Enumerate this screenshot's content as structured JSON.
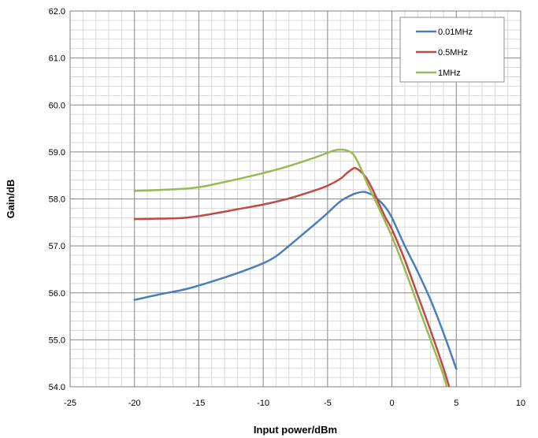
{
  "chart_data": {
    "type": "line",
    "title": "",
    "xlabel": "Input power/dBm",
    "ylabel": "Gain/dB",
    "xlim": [
      -25,
      10
    ],
    "ylim": [
      54.0,
      62.0
    ],
    "x_ticks": [
      -25,
      -20,
      -15,
      -10,
      -5,
      0,
      5,
      10
    ],
    "y_ticks": [
      "54.0",
      "55.0",
      "56.0",
      "57.0",
      "58.0",
      "59.0",
      "60.0",
      "61.0",
      "62.0"
    ],
    "grid": true,
    "minor_grid": true,
    "legend_position": "top-right",
    "series": [
      {
        "name": "0.01MHz",
        "color": "#4a7ebb",
        "points": [
          [
            -20,
            55.85
          ],
          [
            -18,
            55.97
          ],
          [
            -16,
            56.08
          ],
          [
            -14,
            56.24
          ],
          [
            -12,
            56.42
          ],
          [
            -10,
            56.63
          ],
          [
            -9,
            56.78
          ],
          [
            -8,
            57.0
          ],
          [
            -7,
            57.23
          ],
          [
            -6,
            57.46
          ],
          [
            -5,
            57.7
          ],
          [
            -4,
            57.95
          ],
          [
            -3,
            58.1
          ],
          [
            -2.3,
            58.15
          ],
          [
            -2,
            58.14
          ],
          [
            -1.5,
            58.08
          ],
          [
            -1,
            57.97
          ],
          [
            -0.5,
            57.82
          ],
          [
            0,
            57.6
          ],
          [
            1,
            57.0
          ],
          [
            2,
            56.45
          ],
          [
            3,
            55.85
          ],
          [
            4,
            55.15
          ],
          [
            5,
            54.38
          ]
        ]
      },
      {
        "name": "0.5MHz",
        "color": "#be4b48",
        "points": [
          [
            -20,
            57.57
          ],
          [
            -18,
            57.58
          ],
          [
            -16,
            57.6
          ],
          [
            -14,
            57.68
          ],
          [
            -12,
            57.78
          ],
          [
            -10,
            57.88
          ],
          [
            -8,
            58.01
          ],
          [
            -6,
            58.18
          ],
          [
            -5,
            58.28
          ],
          [
            -4,
            58.43
          ],
          [
            -3.5,
            58.55
          ],
          [
            -3,
            58.65
          ],
          [
            -2.8,
            58.65
          ],
          [
            -2.5,
            58.6
          ],
          [
            -2,
            58.45
          ],
          [
            -1.5,
            58.2
          ],
          [
            -1,
            57.9
          ],
          [
            -0.5,
            57.6
          ],
          [
            0,
            57.35
          ],
          [
            1,
            56.7
          ],
          [
            2,
            55.95
          ],
          [
            3,
            55.2
          ],
          [
            4,
            54.4
          ],
          [
            4.5,
            53.95
          ]
        ]
      },
      {
        "name": "1MHz",
        "color": "#98b954",
        "points": [
          [
            -20,
            58.17
          ],
          [
            -18,
            58.19
          ],
          [
            -16,
            58.22
          ],
          [
            -15,
            58.25
          ],
          [
            -14,
            58.3
          ],
          [
            -12,
            58.42
          ],
          [
            -10,
            58.55
          ],
          [
            -8,
            58.7
          ],
          [
            -6,
            58.88
          ],
          [
            -5,
            58.98
          ],
          [
            -4.5,
            59.03
          ],
          [
            -4,
            59.05
          ],
          [
            -3.5,
            59.03
          ],
          [
            -3,
            58.95
          ],
          [
            -2.5,
            58.7
          ],
          [
            -2,
            58.38
          ],
          [
            -1.5,
            58.08
          ],
          [
            -1,
            57.8
          ],
          [
            -0.5,
            57.5
          ],
          [
            0,
            57.2
          ],
          [
            1,
            56.5
          ],
          [
            2,
            55.75
          ],
          [
            3,
            55.0
          ],
          [
            4,
            54.25
          ],
          [
            4.3,
            53.95
          ]
        ]
      }
    ]
  }
}
